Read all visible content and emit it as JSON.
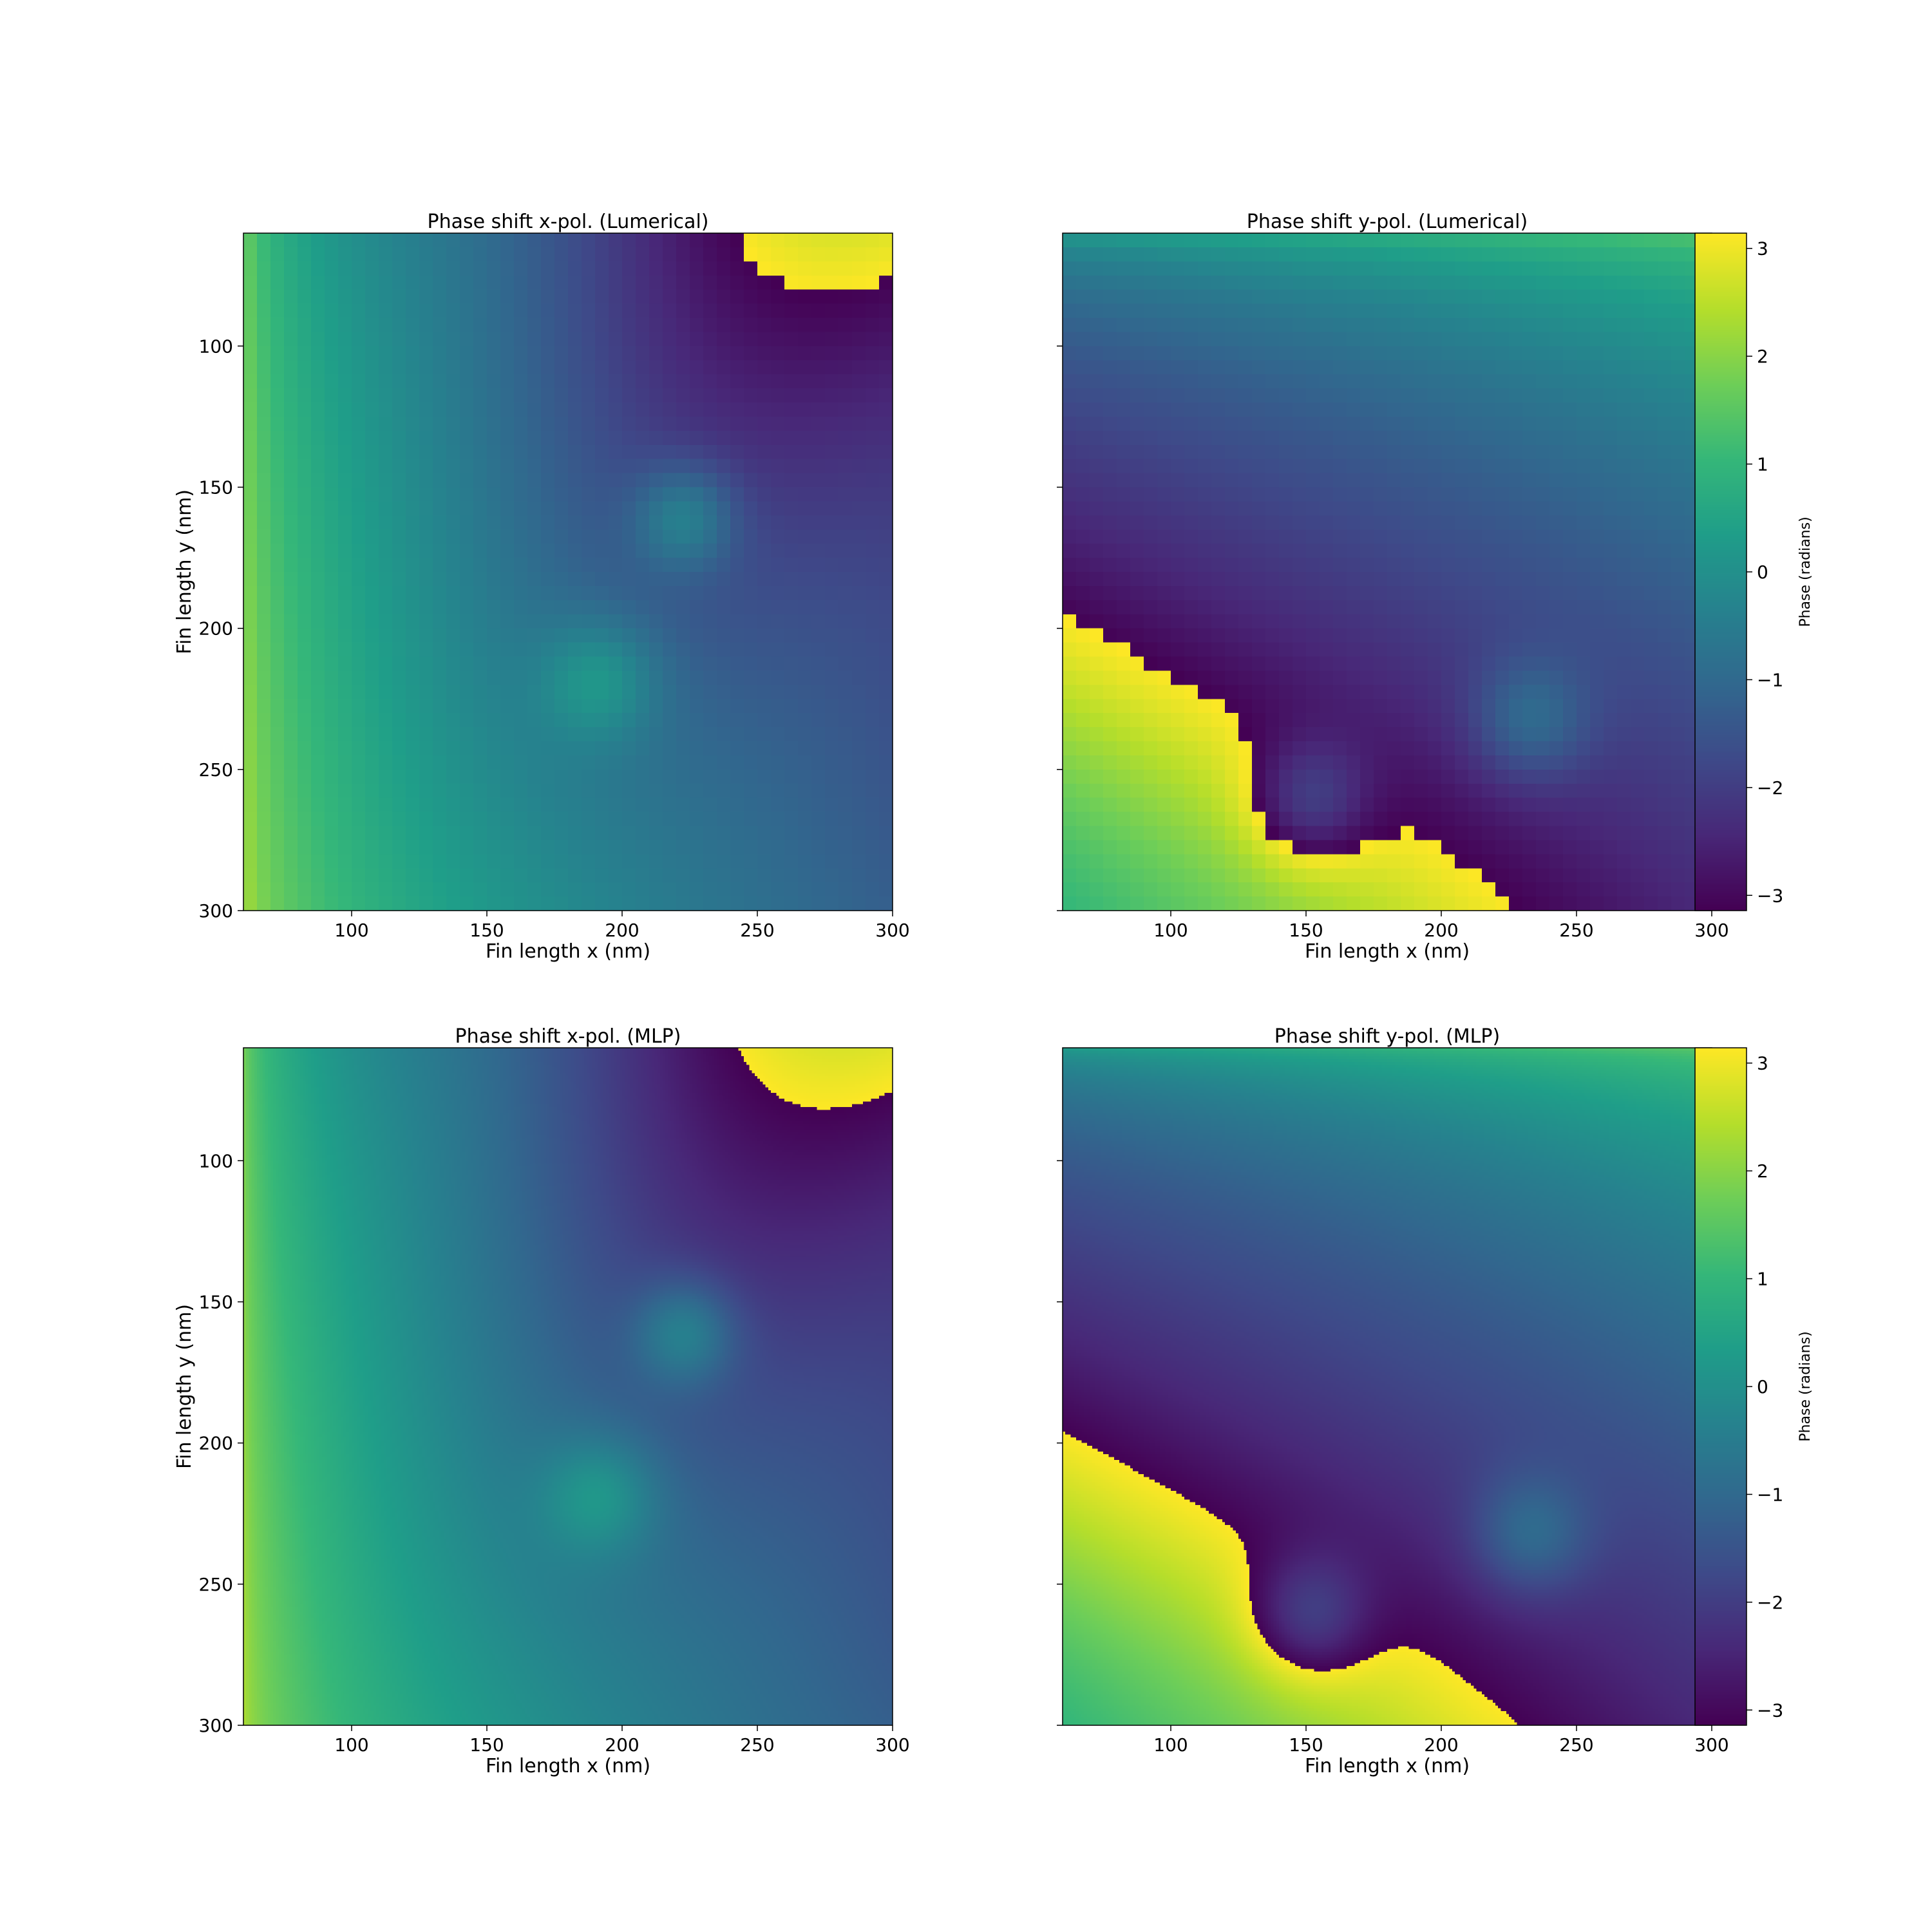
{
  "chart_data": [
    {
      "type": "heatmap",
      "title": "Phase shift x-pol. (Lumerical)",
      "xlabel": "Fin length x (nm)",
      "ylabel": "Fin length y (nm)",
      "xlim": [
        60,
        300
      ],
      "ylim": [
        300,
        60
      ],
      "xticks": [
        100,
        150,
        200,
        250,
        300
      ],
      "yticks": [
        100,
        150,
        200,
        250,
        300
      ],
      "xtick_labels": [
        "100",
        "150",
        "200",
        "250",
        "300"
      ],
      "ytick_labels": [
        "100",
        "150",
        "200",
        "250",
        "300"
      ],
      "colormap": "viridis",
      "resolution": 48,
      "polarization": "x",
      "colorbar": false
    },
    {
      "type": "heatmap",
      "title": "Phase shift y-pol. (Lumerical)",
      "xlabel": "Fin length x (nm)",
      "ylabel": "",
      "xlim": [
        60,
        300
      ],
      "ylim": [
        300,
        60
      ],
      "xticks": [
        100,
        150,
        200,
        250,
        300
      ],
      "xtick_labels": [
        "100",
        "150",
        "200",
        "250",
        "300"
      ],
      "yticks": [
        100,
        150,
        200,
        250,
        300
      ],
      "ytick_labels": [
        "",
        "",
        "",
        "",
        ""
      ],
      "colormap": "viridis",
      "resolution": 48,
      "polarization": "y",
      "colorbar": true,
      "colorbar_label": "Phase (radians)",
      "colorbar_range": [
        -3.1416,
        3.1416
      ],
      "colorbar_ticks": [
        3,
        2,
        1,
        0,
        -1,
        -2,
        -3
      ],
      "colorbar_tick_labels": [
        "3",
        "2",
        "1",
        "0",
        "−1",
        "−2",
        "−3"
      ]
    },
    {
      "type": "heatmap",
      "title": "Phase shift x-pol. (MLP)",
      "xlabel": "Fin length x (nm)",
      "ylabel": "Fin length y (nm)",
      "xlim": [
        60,
        300
      ],
      "ylim": [
        300,
        60
      ],
      "xticks": [
        100,
        150,
        200,
        250,
        300
      ],
      "yticks": [
        100,
        150,
        200,
        250,
        300
      ],
      "xtick_labels": [
        "100",
        "150",
        "200",
        "250",
        "300"
      ],
      "ytick_labels": [
        "100",
        "150",
        "200",
        "250",
        "300"
      ],
      "colormap": "viridis",
      "resolution": 240,
      "polarization": "x",
      "colorbar": false
    },
    {
      "type": "heatmap",
      "title": "Phase shift y-pol. (MLP)",
      "xlabel": "Fin length x (nm)",
      "ylabel": "",
      "xlim": [
        60,
        300
      ],
      "ylim": [
        300,
        60
      ],
      "xticks": [
        100,
        150,
        200,
        250,
        300
      ],
      "xtick_labels": [
        "100",
        "150",
        "200",
        "250",
        "300"
      ],
      "yticks": [
        100,
        150,
        200,
        250,
        300
      ],
      "ytick_labels": [
        "",
        "",
        "",
        "",
        ""
      ],
      "colormap": "viridis",
      "resolution": 240,
      "polarization": "y",
      "colorbar": true,
      "colorbar_label": "Phase (radians)",
      "colorbar_range": [
        -3.1416,
        3.1416
      ],
      "colorbar_ticks": [
        3,
        2,
        1,
        0,
        -1,
        -2,
        -3
      ],
      "colorbar_tick_labels": [
        "3",
        "2",
        "1",
        "0",
        "−1",
        "−2",
        "−3"
      ]
    }
  ]
}
